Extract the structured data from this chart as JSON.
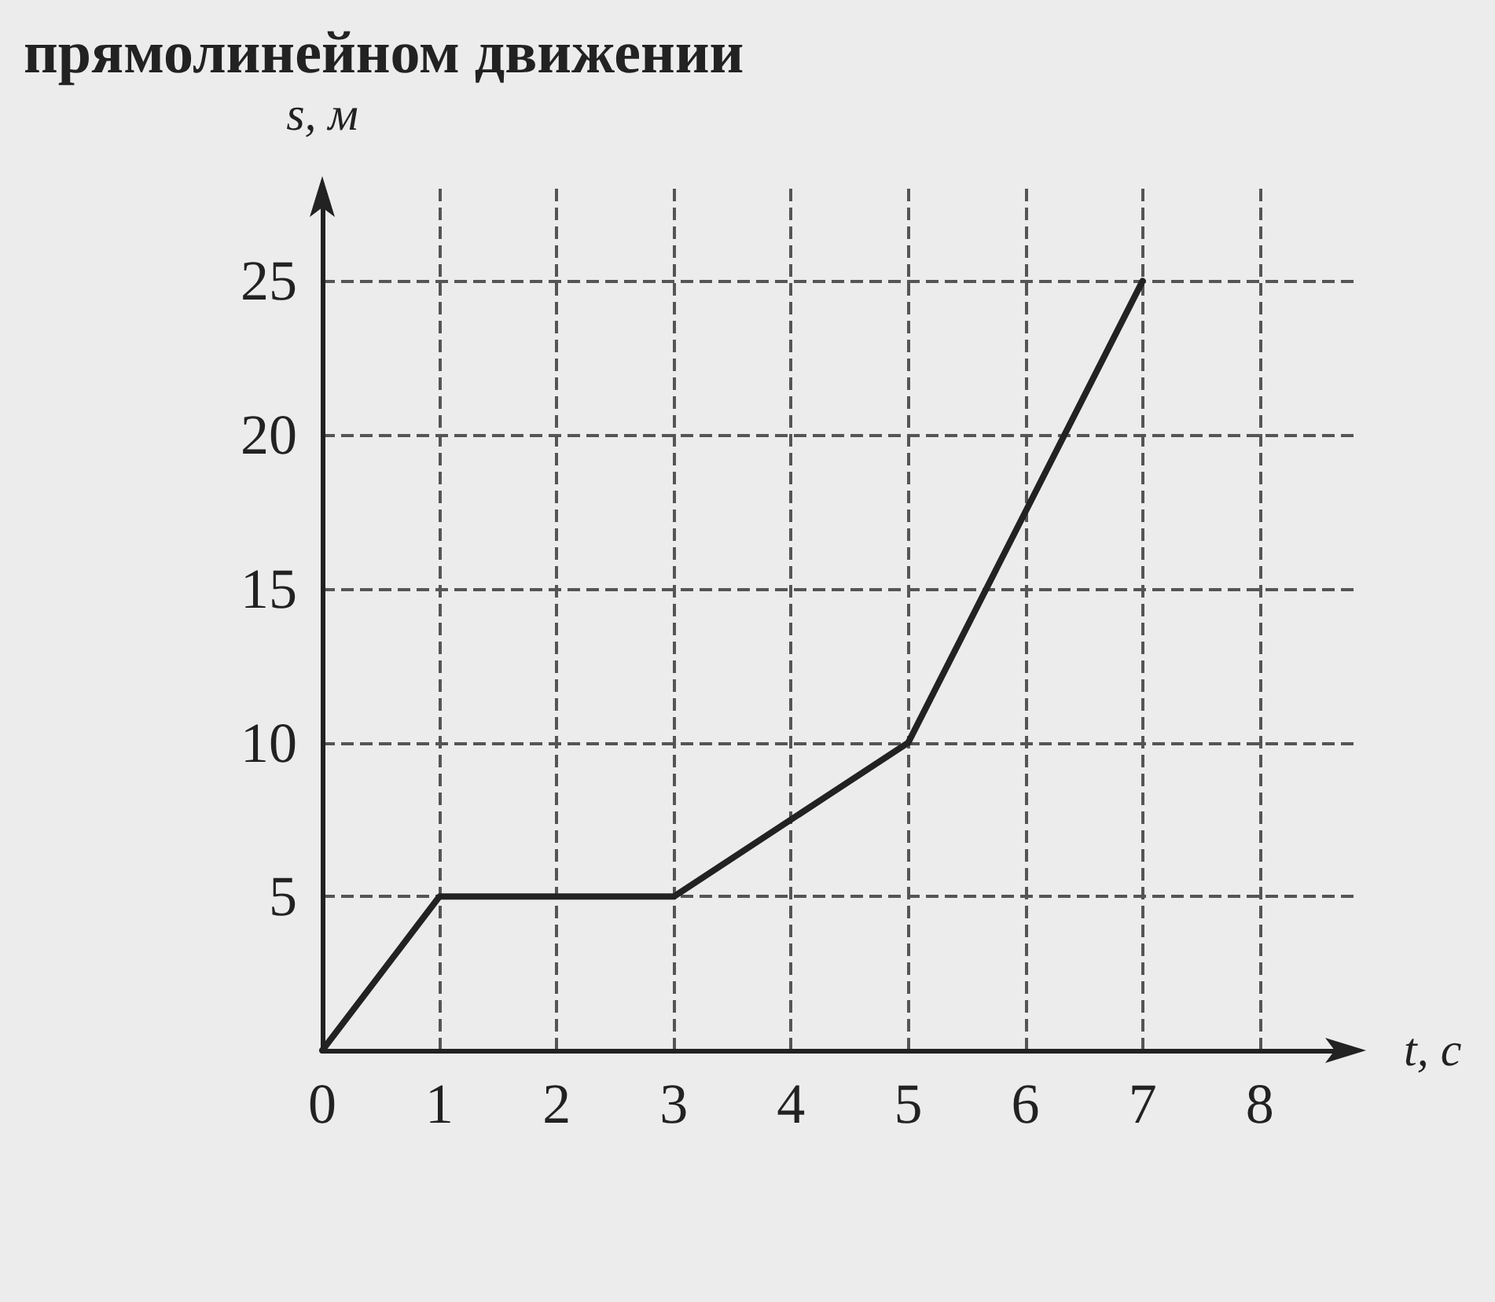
{
  "chart_data": {
    "type": "line",
    "title": "прямолинейном движении",
    "xlabel": "t, с",
    "ylabel": "s, м",
    "x": [
      0,
      1,
      3,
      5,
      7
    ],
    "series": [
      {
        "color": "#222222",
        "values": [
          0,
          5,
          5,
          10,
          25
        ]
      }
    ],
    "xlim": [
      0,
      8.8
    ],
    "xticks": [
      0,
      1,
      2,
      3,
      4,
      5,
      6,
      7,
      8
    ],
    "ylim": [
      0,
      28
    ],
    "yticks": [
      {
        "value": 0,
        "label": null
      },
      5,
      10,
      15,
      20,
      25
    ],
    "grid": true,
    "marker": "none",
    "line_style": "solid"
  }
}
